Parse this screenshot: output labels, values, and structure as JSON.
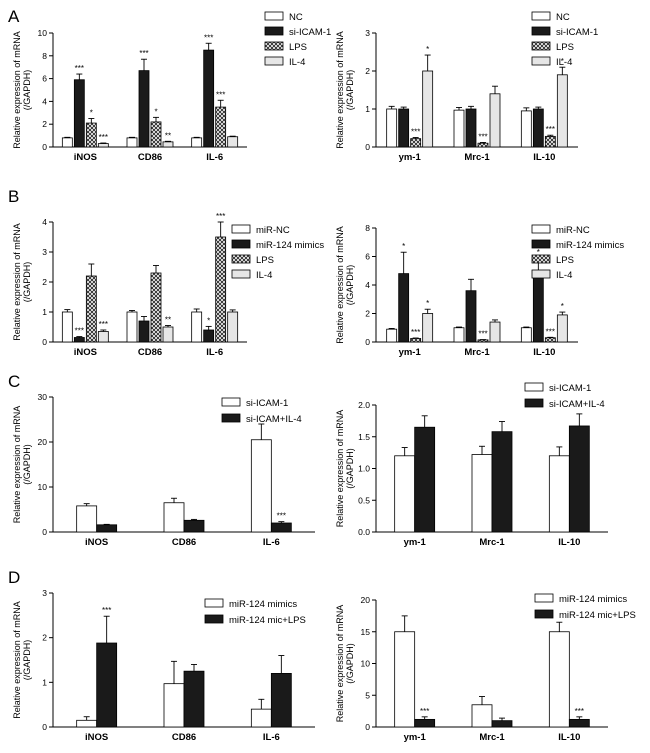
{
  "figure": {
    "panel_labels": [
      "A",
      "B",
      "C",
      "D"
    ],
    "ylabel": "Relative expression of mRNA",
    "ylabel2": "(/GAPDH)"
  },
  "colors": {
    "white": "#ffffff",
    "black": "#1a1a1a",
    "light": "#e6e6e6",
    "axis": "#000000"
  },
  "chart_data": [
    {
      "panel": "A",
      "side": "left",
      "type": "bar",
      "categories": [
        "iNOS",
        "CD86",
        "IL-6"
      ],
      "ylim": [
        0,
        10
      ],
      "yticks": [
        0,
        2,
        4,
        6,
        8,
        10
      ],
      "series": [
        {
          "name": "NC",
          "pattern": "white",
          "values": [
            0.8,
            0.8,
            0.8
          ],
          "errors": [
            0.05,
            0.05,
            0.05
          ],
          "sig": [
            "",
            "",
            ""
          ]
        },
        {
          "name": "si-ICAM-1",
          "pattern": "black",
          "values": [
            5.9,
            6.7,
            8.5
          ],
          "errors": [
            0.5,
            1.0,
            0.6
          ],
          "sig": [
            "***",
            "***",
            "***"
          ]
        },
        {
          "name": "LPS",
          "pattern": "cross",
          "values": [
            2.1,
            2.2,
            3.5
          ],
          "errors": [
            0.4,
            0.4,
            0.6
          ],
          "sig": [
            "*",
            "*",
            "***"
          ]
        },
        {
          "name": "IL-4",
          "pattern": "light",
          "values": [
            0.3,
            0.45,
            0.9
          ],
          "errors": [
            0.05,
            0.05,
            0.05
          ],
          "sig": [
            "***",
            "**",
            ""
          ]
        }
      ]
    },
    {
      "panel": "A",
      "side": "right",
      "type": "bar",
      "categories": [
        "ym-1",
        "Mrc-1",
        "IL-10"
      ],
      "ylim": [
        0,
        3
      ],
      "yticks": [
        0,
        1,
        2,
        3
      ],
      "series": [
        {
          "name": "NC",
          "pattern": "white",
          "values": [
            1.0,
            0.97,
            0.95
          ],
          "errors": [
            0.07,
            0.07,
            0.08
          ],
          "sig": [
            "",
            "",
            ""
          ]
        },
        {
          "name": "si-ICAM-1",
          "pattern": "black",
          "values": [
            1.0,
            1.0,
            1.0
          ],
          "errors": [
            0.05,
            0.07,
            0.05
          ],
          "sig": [
            "",
            "",
            ""
          ]
        },
        {
          "name": "LPS",
          "pattern": "cross",
          "values": [
            0.22,
            0.1,
            0.28
          ],
          "errors": [
            0.03,
            0.02,
            0.03
          ],
          "sig": [
            "***",
            "***",
            "***"
          ]
        },
        {
          "name": "IL-4",
          "pattern": "light",
          "values": [
            2.0,
            1.4,
            1.9
          ],
          "errors": [
            0.42,
            0.2,
            0.2
          ],
          "sig": [
            "*",
            "",
            "*"
          ]
        }
      ]
    },
    {
      "panel": "B",
      "side": "left",
      "type": "bar",
      "categories": [
        "iNOS",
        "CD86",
        "IL-6"
      ],
      "ylim": [
        0,
        4
      ],
      "yticks": [
        0,
        1,
        2,
        3,
        4
      ],
      "series": [
        {
          "name": "miR-NC",
          "pattern": "white",
          "values": [
            1.0,
            1.0,
            1.0
          ],
          "errors": [
            0.08,
            0.05,
            0.1
          ],
          "sig": [
            "",
            "",
            ""
          ]
        },
        {
          "name": "miR-124 mimics",
          "pattern": "black",
          "values": [
            0.15,
            0.7,
            0.4
          ],
          "errors": [
            0.03,
            0.15,
            0.12
          ],
          "sig": [
            "***",
            "",
            "*"
          ]
        },
        {
          "name": "LPS",
          "pattern": "cross",
          "values": [
            2.2,
            2.3,
            3.5
          ],
          "errors": [
            0.4,
            0.25,
            0.5
          ],
          "sig": [
            "",
            "",
            "***"
          ]
        },
        {
          "name": "IL-4",
          "pattern": "light",
          "values": [
            0.35,
            0.5,
            1.0
          ],
          "errors": [
            0.05,
            0.05,
            0.07
          ],
          "sig": [
            "***",
            "**",
            ""
          ]
        }
      ]
    },
    {
      "panel": "B",
      "side": "right",
      "type": "bar",
      "categories": [
        "ym-1",
        "Mrc-1",
        "IL-10"
      ],
      "ylim": [
        0,
        8
      ],
      "yticks": [
        0,
        2,
        4,
        6,
        8
      ],
      "series": [
        {
          "name": "miR-NC",
          "pattern": "white",
          "values": [
            0.9,
            1.0,
            1.0
          ],
          "errors": [
            0.05,
            0.05,
            0.05
          ],
          "sig": [
            "",
            "",
            ""
          ]
        },
        {
          "name": "miR-124 mimics",
          "pattern": "black",
          "values": [
            4.8,
            3.6,
            5.0
          ],
          "errors": [
            1.5,
            0.8,
            0.9
          ],
          "sig": [
            "*",
            "",
            "*"
          ]
        },
        {
          "name": "LPS",
          "pattern": "cross",
          "values": [
            0.25,
            0.15,
            0.3
          ],
          "errors": [
            0.03,
            0.02,
            0.03
          ],
          "sig": [
            "***",
            "***",
            "***"
          ]
        },
        {
          "name": "IL-4",
          "pattern": "light",
          "values": [
            2.0,
            1.4,
            1.9
          ],
          "errors": [
            0.3,
            0.15,
            0.2
          ],
          "sig": [
            "*",
            "",
            "*"
          ]
        }
      ]
    },
    {
      "panel": "C",
      "side": "left",
      "type": "bar",
      "categories": [
        "iNOS",
        "CD86",
        "IL-6"
      ],
      "ylim": [
        0,
        30
      ],
      "yticks": [
        0,
        10,
        20,
        30
      ],
      "series": [
        {
          "name": "si-ICAM-1",
          "pattern": "white",
          "values": [
            5.8,
            6.5,
            20.5
          ],
          "errors": [
            0.5,
            1.0,
            3.5
          ],
          "sig": [
            "",
            "",
            ""
          ]
        },
        {
          "name": "si-ICAM+IL-4",
          "pattern": "black",
          "values": [
            1.6,
            2.6,
            2.0
          ],
          "errors": [
            0.1,
            0.2,
            0.3
          ],
          "sig": [
            "",
            "",
            "***"
          ]
        }
      ]
    },
    {
      "panel": "C",
      "side": "right",
      "type": "bar",
      "categories": [
        "ym-1",
        "Mrc-1",
        "IL-10"
      ],
      "ylim": [
        0,
        2.0
      ],
      "yticks": [
        0.0,
        0.5,
        1.0,
        1.5,
        2.0
      ],
      "tick_decimals": 1,
      "series": [
        {
          "name": "si-ICAM-1",
          "pattern": "white",
          "values": [
            1.2,
            1.22,
            1.2
          ],
          "errors": [
            0.13,
            0.13,
            0.14
          ],
          "sig": [
            "",
            "",
            ""
          ]
        },
        {
          "name": "si-ICAM+IL-4",
          "pattern": "black",
          "values": [
            1.65,
            1.58,
            1.67
          ],
          "errors": [
            0.18,
            0.16,
            0.19
          ],
          "sig": [
            "",
            "",
            ""
          ]
        }
      ]
    },
    {
      "panel": "D",
      "side": "left",
      "type": "bar",
      "categories": [
        "iNOS",
        "CD86",
        "IL-6"
      ],
      "ylim": [
        0,
        3
      ],
      "yticks": [
        0,
        1,
        2,
        3
      ],
      "series": [
        {
          "name": "miR-124 mimics",
          "pattern": "white",
          "values": [
            0.15,
            0.97,
            0.4
          ],
          "errors": [
            0.08,
            0.5,
            0.22
          ],
          "sig": [
            "",
            "",
            ""
          ]
        },
        {
          "name": "miR-124 mic+LPS",
          "pattern": "black",
          "values": [
            1.88,
            1.25,
            1.2
          ],
          "errors": [
            0.6,
            0.15,
            0.4
          ],
          "sig": [
            "***",
            "",
            ""
          ]
        }
      ]
    },
    {
      "panel": "D",
      "side": "right",
      "type": "bar",
      "categories": [
        "ym-1",
        "Mrc-1",
        "IL-10"
      ],
      "ylim": [
        0,
        20
      ],
      "yticks": [
        0,
        5,
        10,
        15,
        20
      ],
      "series": [
        {
          "name": "miR-124 mimics",
          "pattern": "white",
          "values": [
            15.0,
            3.5,
            15.0
          ],
          "errors": [
            2.5,
            1.3,
            1.5
          ],
          "sig": [
            "",
            "",
            ""
          ]
        },
        {
          "name": "miR-124 mic+LPS",
          "pattern": "black",
          "values": [
            1.2,
            1.0,
            1.2
          ],
          "errors": [
            0.4,
            0.4,
            0.4
          ],
          "sig": [
            "***",
            "",
            "***"
          ]
        }
      ]
    }
  ]
}
